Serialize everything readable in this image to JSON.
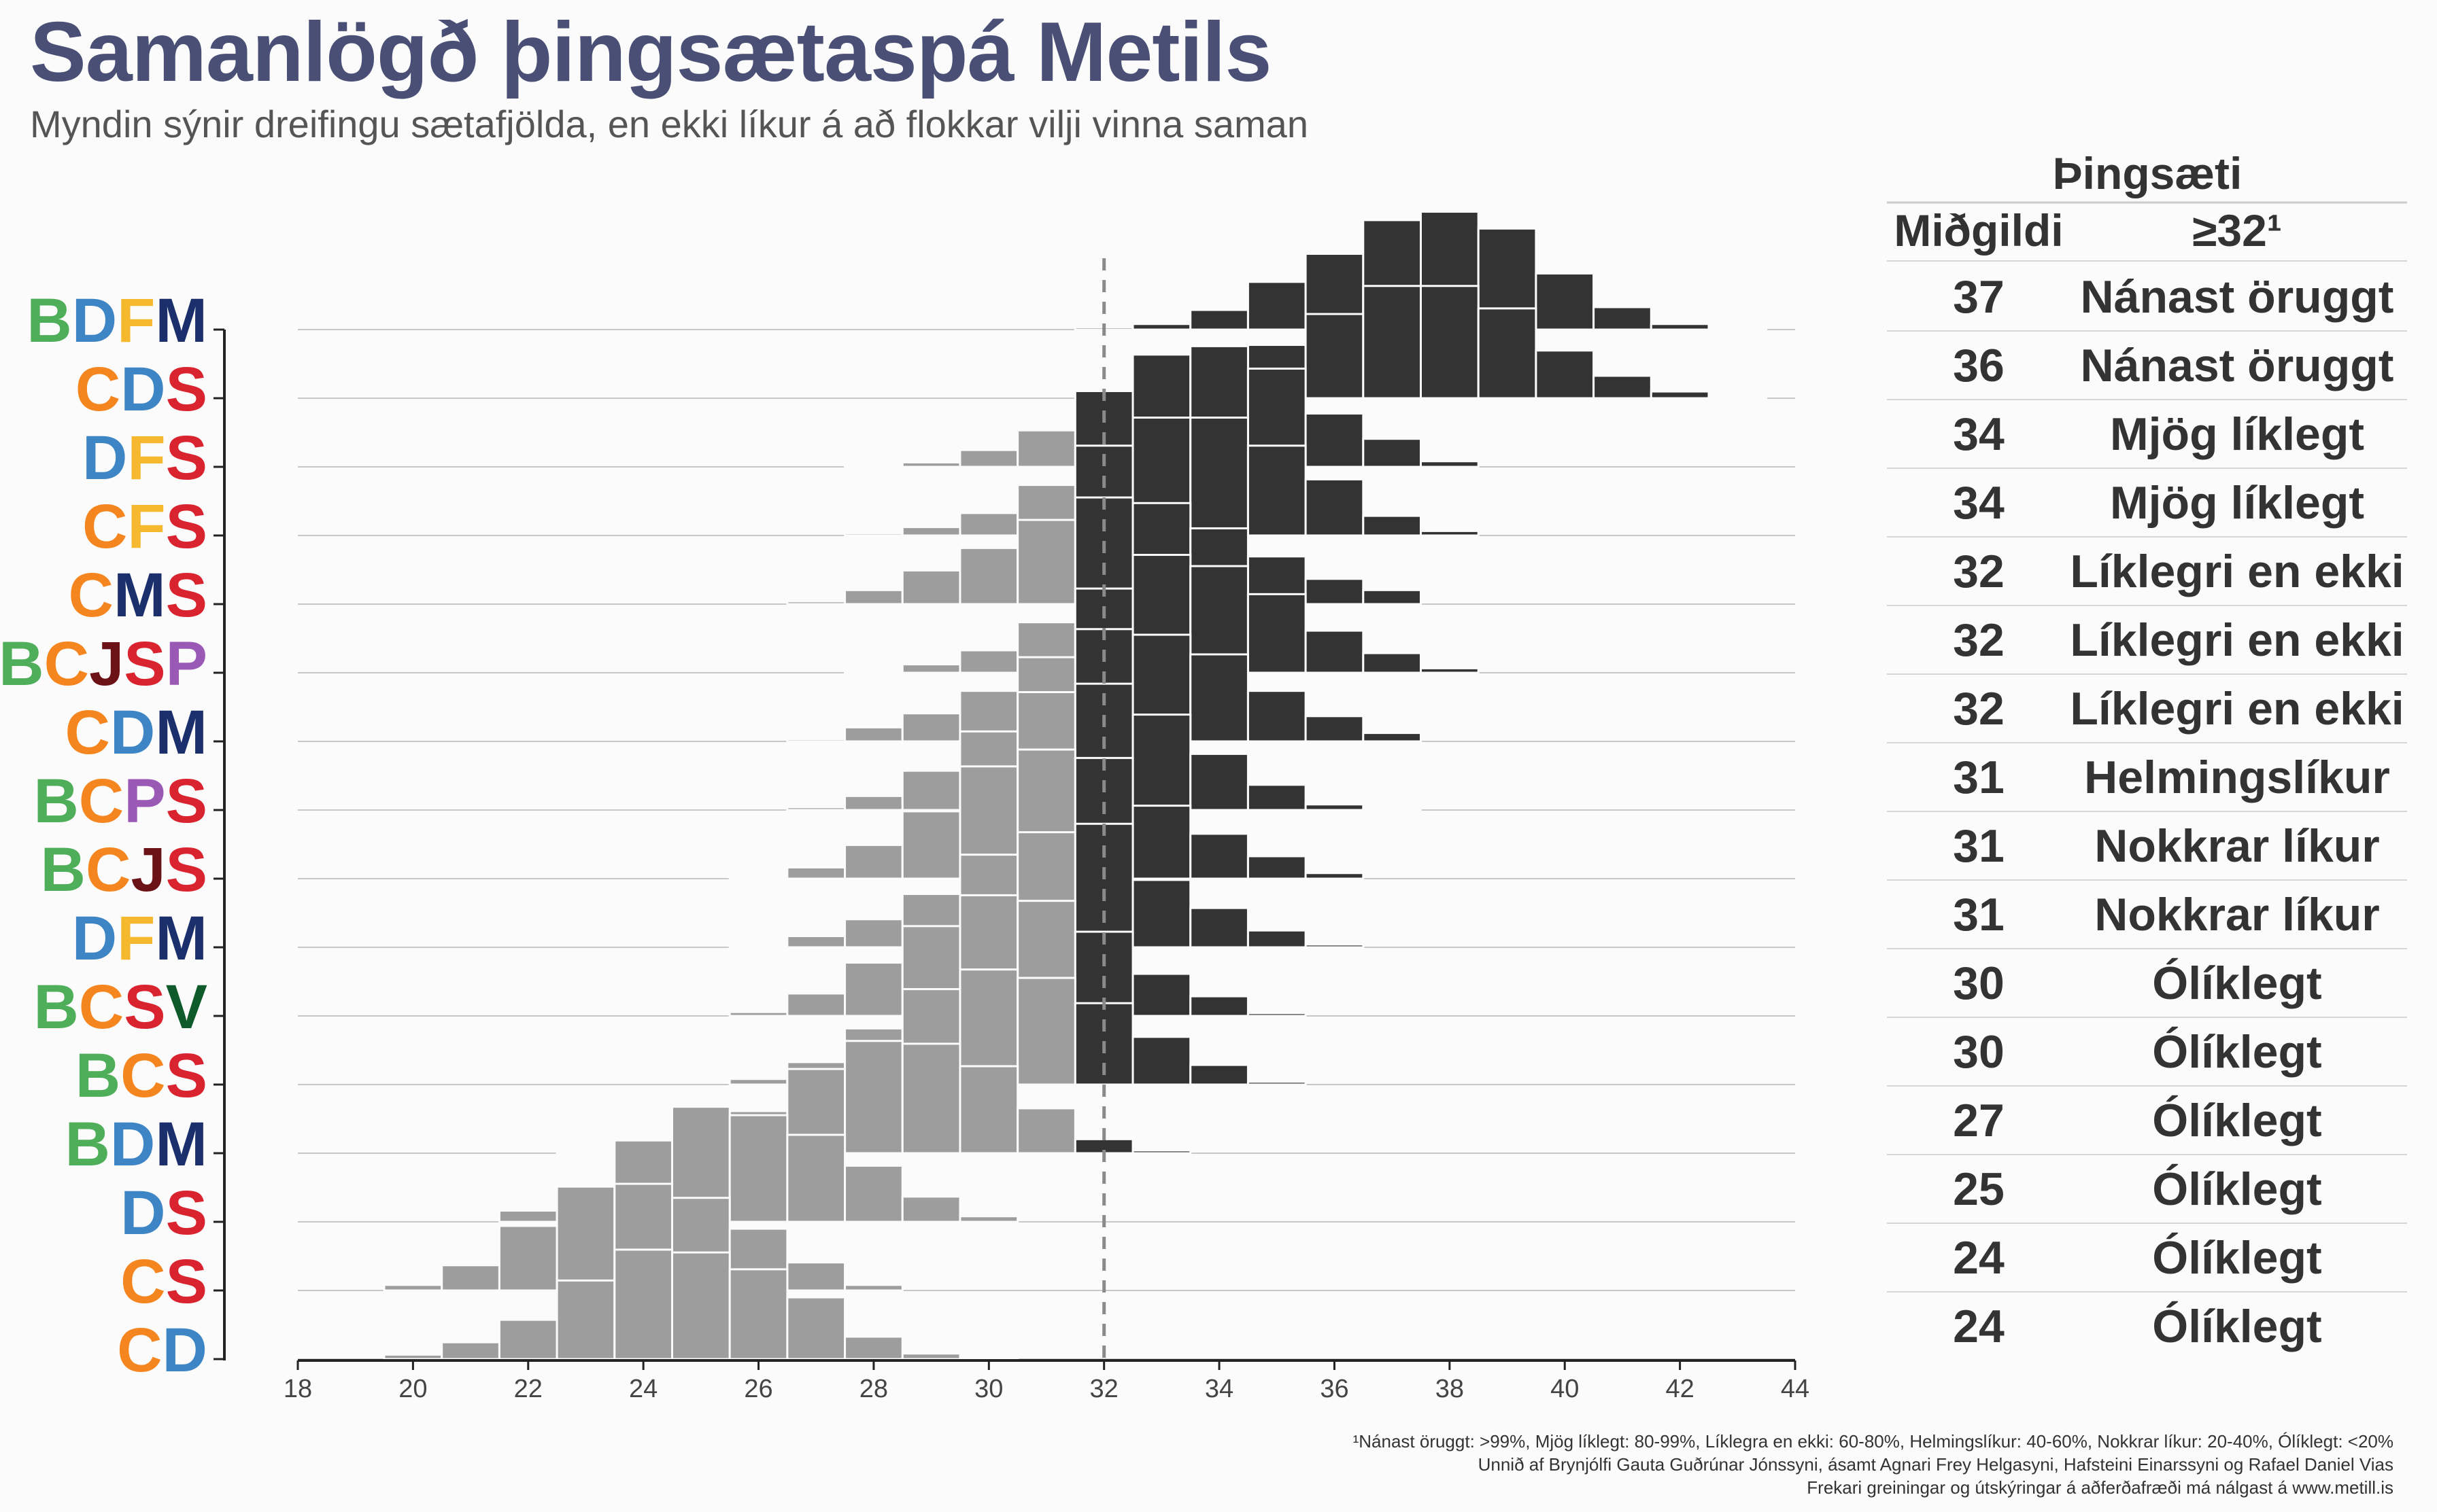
{
  "title": "Samanlögð þingsætaspá Metils",
  "subtitle": "Myndin sýnir dreifingu sætafjölda, en ekki líkur á að flokkar vilji vinna saman",
  "colors": {
    "B": "#4eae5a",
    "C": "#f5861f",
    "D": "#3d85c4",
    "F": "#f5b82e",
    "M": "#1a2f6b",
    "S": "#d9232e",
    "J": "#6b1217",
    "P": "#9b59b6",
    "V": "#0f5a2b",
    "below_majority": "#9d9d9d",
    "at_or_above_majority": "#333333",
    "title": "#4a5075"
  },
  "table": {
    "header_group": "Þingsæti",
    "col_median": "Miðgildi",
    "col_prob": "≥32¹"
  },
  "footnotes": [
    "¹Nánast öruggt: >99%, Mjög líklegt: 80-99%, Líklegra en ekki: 60-80%, Helmingslíkur: 40-60%, Nokkrar líkur: 20-40%, Ólíklegt: <20%",
    "Unnið af Brynjólfi Gauta Guðrúnar Jónssyni, ásamt Agnari Frey Helgasyni, Hafsteini Einarssyni og Rafael Daniel Vias",
    "Frekari greiningar og útskýringar á aðferðafræði má nálgast á www.metill.is"
  ],
  "chart_data": {
    "type": "ridgeline-histogram",
    "x_axis": {
      "range": [
        18,
        44
      ],
      "ticks": [
        18,
        20,
        22,
        24,
        26,
        28,
        30,
        32,
        34,
        36,
        38,
        40,
        42,
        44
      ]
    },
    "majority_line": 32,
    "bin_width": 1,
    "series": [
      {
        "name": "BDFM",
        "median": 37,
        "prob_label": "Nánast öruggt",
        "start": 31,
        "values": [
          0.004,
          0.01,
          0.035,
          0.085,
          0.135,
          0.195,
          0.21,
          0.18,
          0.1,
          0.04,
          0.01,
          0.002
        ]
      },
      {
        "name": "CDS",
        "median": 36,
        "prob_label": "Nánast öruggt",
        "start": 31,
        "values": [
          0.004,
          0.012,
          0.045,
          0.095,
          0.15,
          0.2,
          0.2,
          0.16,
          0.085,
          0.04,
          0.012,
          0.003
        ]
      },
      {
        "name": "DFS",
        "median": 34,
        "prob_label": "Mjög líklegt",
        "start": 27,
        "values": [
          0.002,
          0.008,
          0.03,
          0.065,
          0.135,
          0.2,
          0.215,
          0.175,
          0.095,
          0.05,
          0.01
        ]
      },
      {
        "name": "CFS",
        "median": 34,
        "prob_label": "Mjög líklegt",
        "start": 27,
        "values": [
          0.004,
          0.015,
          0.04,
          0.09,
          0.16,
          0.21,
          0.21,
          0.16,
          0.1,
          0.035,
          0.008
        ]
      },
      {
        "name": "CMS",
        "median": 32,
        "prob_label": "Líklegri en ekki",
        "start": 26,
        "values": [
          0.005,
          0.025,
          0.06,
          0.1,
          0.15,
          0.19,
          0.18,
          0.135,
          0.085,
          0.045,
          0.025
        ]
      },
      {
        "name": "BCJSP",
        "median": 32,
        "prob_label": "Líklegri en ekki",
        "start": 27,
        "values": [
          0.003,
          0.015,
          0.04,
          0.09,
          0.15,
          0.21,
          0.19,
          0.14,
          0.075,
          0.035,
          0.008
        ]
      },
      {
        "name": "CDM",
        "median": 32,
        "prob_label": "Líklegri en ekki",
        "start": 26,
        "values": [
          0.004,
          0.025,
          0.05,
          0.09,
          0.15,
          0.2,
          0.19,
          0.155,
          0.09,
          0.045,
          0.015
        ]
      },
      {
        "name": "BCPS",
        "median": 31,
        "prob_label": "Helmingslíkur",
        "start": 26,
        "values": [
          0.005,
          0.025,
          0.07,
          0.14,
          0.21,
          0.225,
          0.17,
          0.1,
          0.045,
          0.01,
          0.002
        ]
      },
      {
        "name": "BCJS",
        "median": 31,
        "prob_label": "Nokkrar líkur",
        "start": 25,
        "values": [
          0.002,
          0.02,
          0.06,
          0.12,
          0.2,
          0.23,
          0.215,
          0.13,
          0.08,
          0.04,
          0.01
        ]
      },
      {
        "name": "DFM",
        "median": 31,
        "prob_label": "Nokkrar líkur",
        "start": 25,
        "values": [
          0.003,
          0.02,
          0.05,
          0.095,
          0.165,
          0.205,
          0.22,
          0.12,
          0.07,
          0.03,
          0.005
        ]
      },
      {
        "name": "BCSV",
        "median": 30,
        "prob_label": "Ólíklegt",
        "start": 25,
        "values": [
          0.007,
          0.04,
          0.095,
          0.16,
          0.215,
          0.205,
          0.15,
          0.075,
          0.035,
          0.005
        ]
      },
      {
        "name": "BCS",
        "median": 30,
        "prob_label": "Ólíklegt",
        "start": 25,
        "values": [
          0.01,
          0.04,
          0.1,
          0.17,
          0.205,
          0.19,
          0.145,
          0.085,
          0.035,
          0.005
        ]
      },
      {
        "name": "BDM",
        "median": 27,
        "prob_label": "Ólíklegt",
        "start": 22,
        "values": [
          0.002,
          0.007,
          0.025,
          0.075,
          0.15,
          0.2,
          0.195,
          0.155,
          0.08,
          0.025,
          0.005
        ]
      },
      {
        "name": "DS",
        "median": 25,
        "prob_label": "Ólíklegt",
        "start": 21,
        "values": [
          0.02,
          0.065,
          0.145,
          0.205,
          0.19,
          0.155,
          0.1,
          0.045,
          0.01
        ]
      },
      {
        "name": "CS",
        "median": 24,
        "prob_label": "Ólíklegt",
        "start": 19,
        "values": [
          0.01,
          0.045,
          0.115,
          0.185,
          0.19,
          0.165,
          0.11,
          0.05,
          0.01
        ]
      },
      {
        "name": "CD",
        "median": 24,
        "prob_label": "Ólíklegt",
        "start": 19,
        "values": [
          0.008,
          0.03,
          0.07,
          0.14,
          0.195,
          0.19,
          0.16,
          0.11,
          0.04,
          0.01,
          0.002
        ]
      }
    ]
  }
}
